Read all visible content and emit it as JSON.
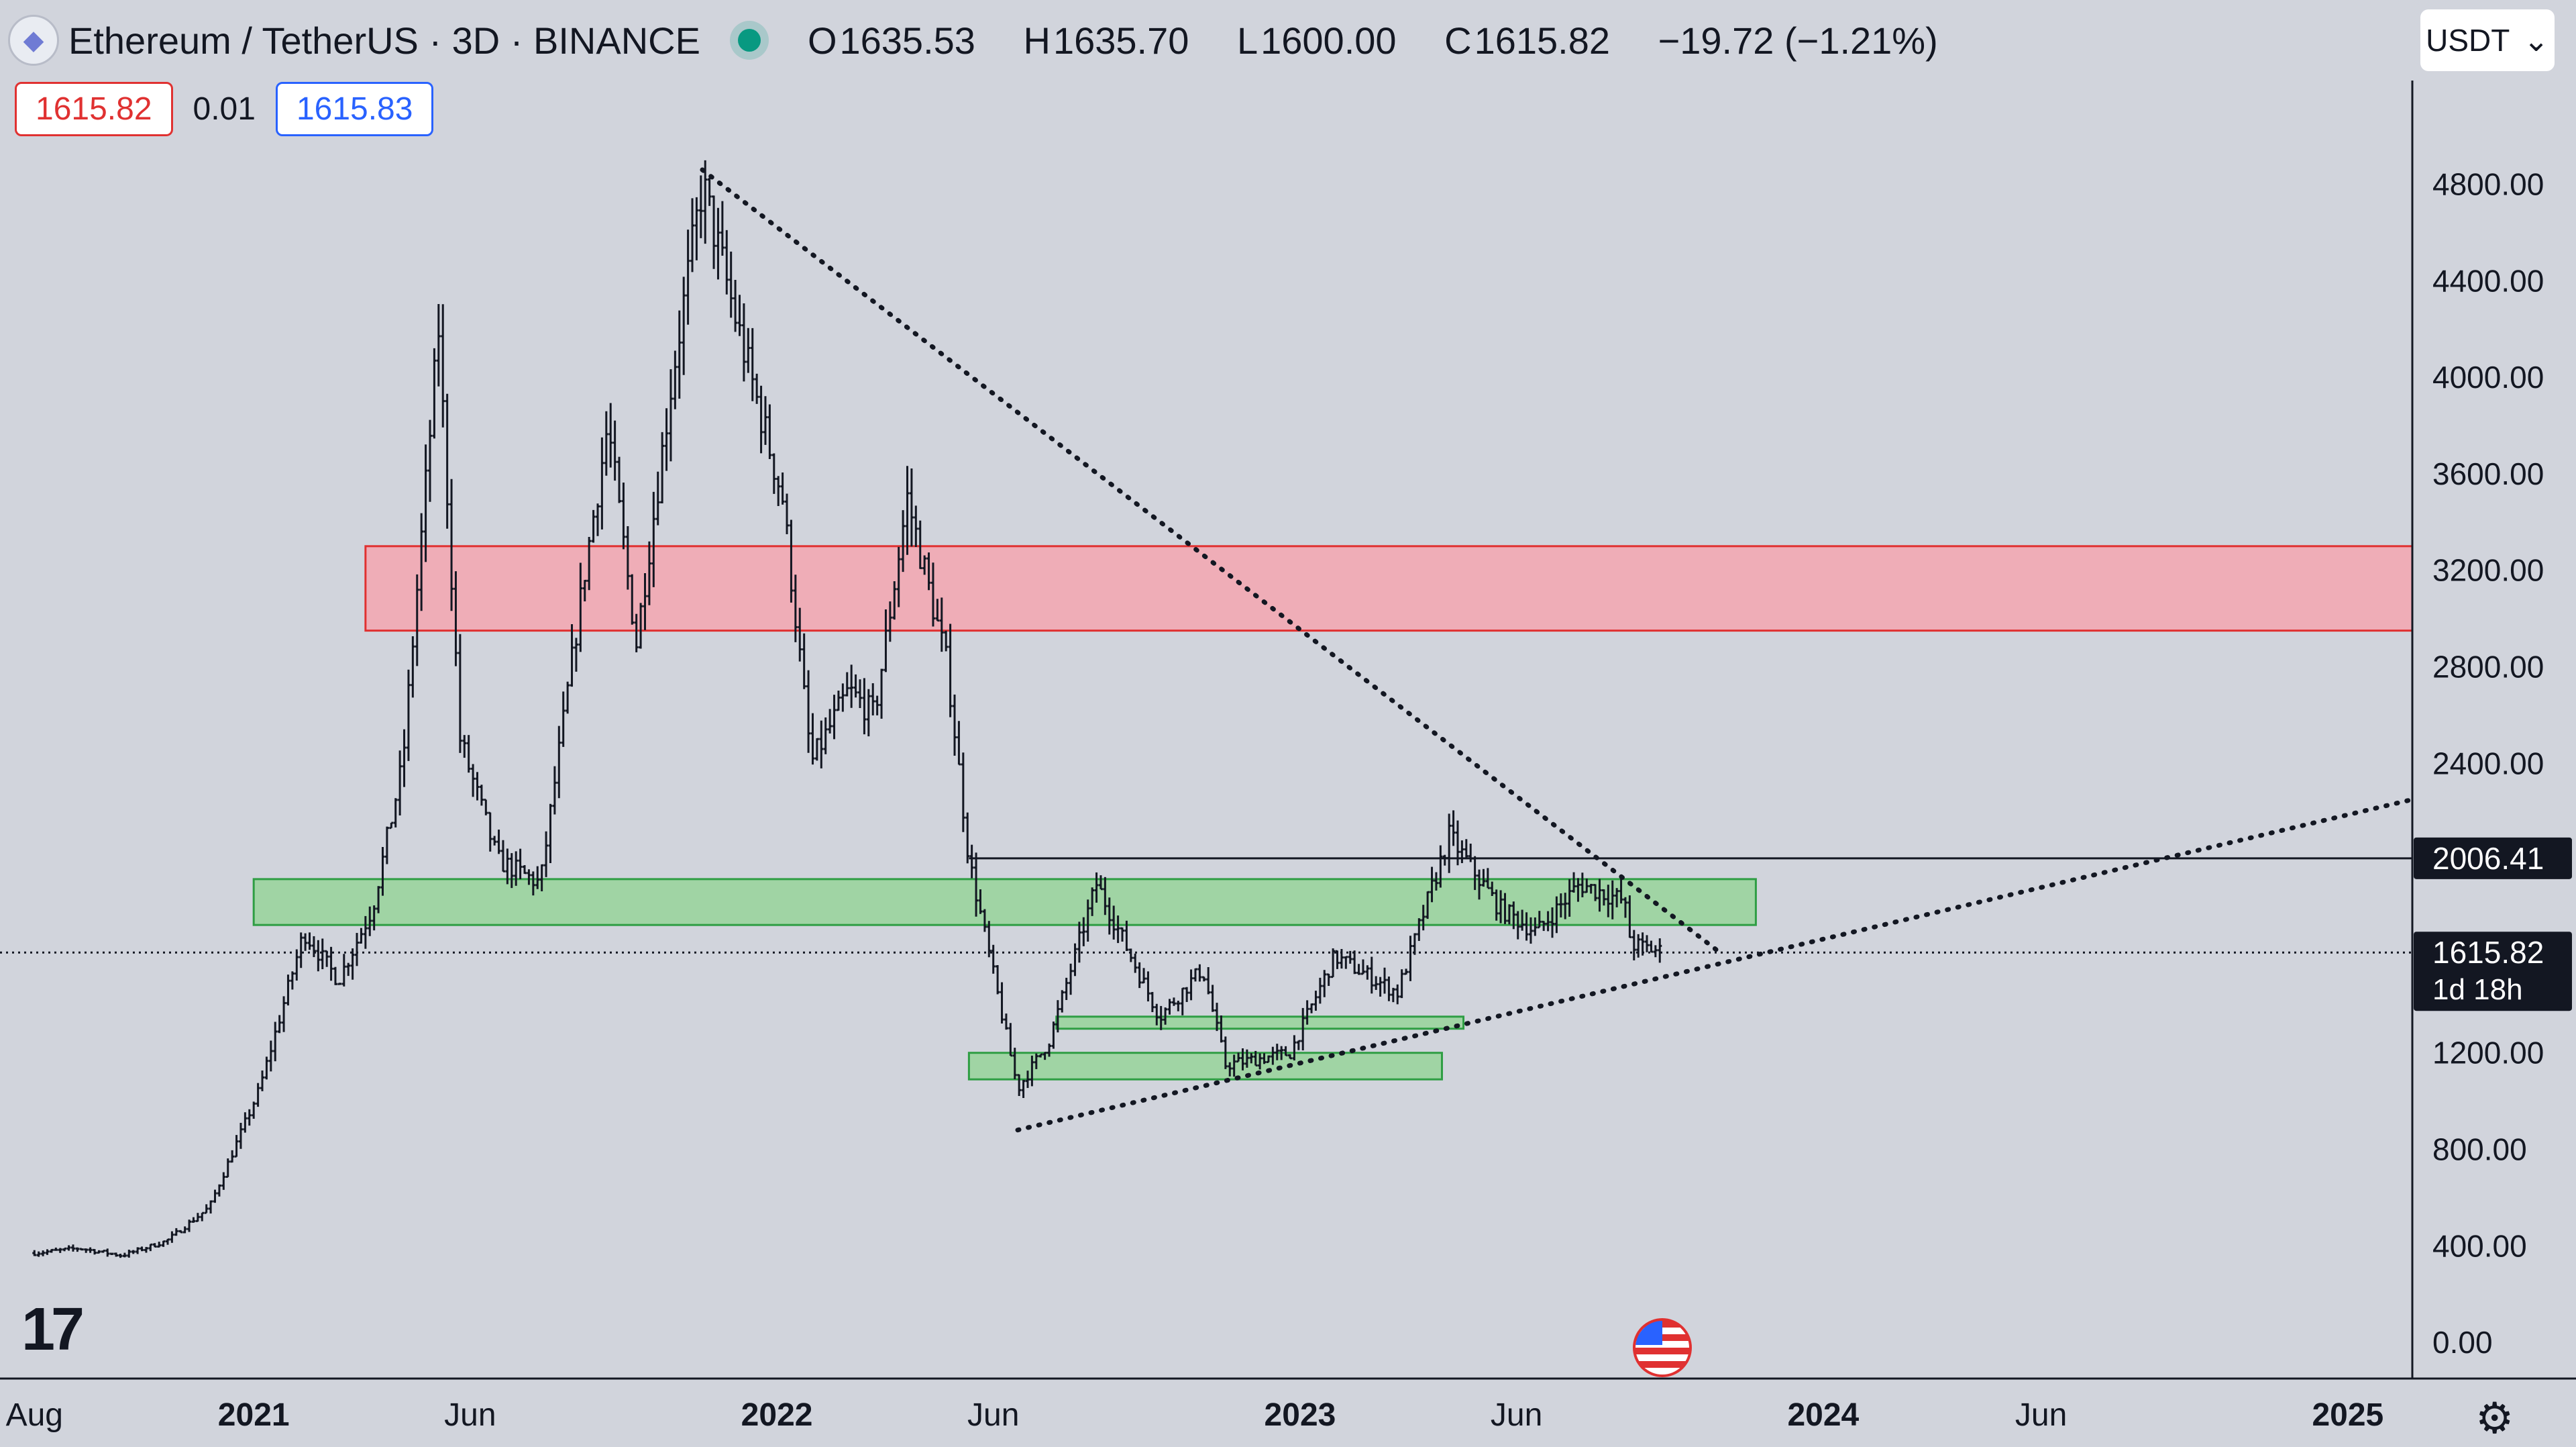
{
  "header": {
    "symbol": "Ethereum / TetherUS · 3D · BINANCE",
    "open_label": "O",
    "open": "1635.53",
    "high_label": "H",
    "high": "1635.70",
    "low_label": "L",
    "low": "1600.00",
    "close_label": "C",
    "close": "1615.82",
    "change": "−19.72 (−1.21%)"
  },
  "trade": {
    "sell_price": "1615.82",
    "spread": "0.01",
    "buy_price": "1615.83"
  },
  "currency_select": {
    "value": "USDT"
  },
  "icons": {
    "logo": "ethereum-icon",
    "live": "live-dot-icon",
    "brand": "tradingview-logo",
    "flag": "us-flag-icon",
    "settings": "gear-icon",
    "chevron": "chevron-down-icon"
  },
  "colors": {
    "background": "#d1d4dc",
    "candle": "#131722",
    "resistance_zone": "#f4a6b0",
    "support_zone": "#98d49a"
  },
  "chart_data": {
    "type": "candlestick",
    "title": "Ethereum / TetherUS · 3D · BINANCE",
    "x_ticks": [
      "Aug",
      "2021",
      "Jun",
      "2022",
      "Jun",
      "2023",
      "Jun",
      "2024",
      "Jun",
      "2025"
    ],
    "x_tick_dates": [
      "2020-08-01",
      "2021-01-01",
      "2021-06-01",
      "2022-01-01",
      "2022-06-01",
      "2023-01-01",
      "2023-06-01",
      "2024-01-01",
      "2024-06-01",
      "2025-01-01"
    ],
    "y_ticks": [
      "0.00",
      "400.00",
      "800.00",
      "1200.00",
      "2400.00",
      "2800.00",
      "3200.00",
      "3600.00",
      "4000.00",
      "4400.00",
      "4800.00"
    ],
    "ylim": [
      -150,
      5230
    ],
    "xlim": [
      "2020-07-08",
      "2025-02-15"
    ],
    "price_series": [
      {
        "date": "2020-08-01",
        "price": 370
      },
      {
        "date": "2020-09-01",
        "price": 390
      },
      {
        "date": "2020-10-01",
        "price": 360
      },
      {
        "date": "2020-11-01",
        "price": 420
      },
      {
        "date": "2020-12-01",
        "price": 560
      },
      {
        "date": "2021-01-05",
        "price": 1050
      },
      {
        "date": "2021-02-05",
        "price": 1700
      },
      {
        "date": "2021-03-01",
        "price": 1500
      },
      {
        "date": "2021-03-25",
        "price": 1800
      },
      {
        "date": "2021-04-15",
        "price": 2400
      },
      {
        "date": "2021-05-10",
        "price": 4200
      },
      {
        "date": "2021-05-25",
        "price": 2500
      },
      {
        "date": "2021-06-20",
        "price": 2000
      },
      {
        "date": "2021-07-20",
        "price": 1900
      },
      {
        "date": "2021-08-20",
        "price": 3200
      },
      {
        "date": "2021-09-05",
        "price": 3800
      },
      {
        "date": "2021-09-25",
        "price": 2900
      },
      {
        "date": "2021-10-20",
        "price": 4000
      },
      {
        "date": "2021-11-10",
        "price": 4800
      },
      {
        "date": "2021-12-05",
        "price": 4200
      },
      {
        "date": "2022-01-05",
        "price": 3500
      },
      {
        "date": "2022-01-25",
        "price": 2400
      },
      {
        "date": "2022-02-20",
        "price": 2700
      },
      {
        "date": "2022-03-10",
        "price": 2600
      },
      {
        "date": "2022-04-02",
        "price": 3500
      },
      {
        "date": "2022-04-30",
        "price": 2800
      },
      {
        "date": "2022-05-15",
        "price": 2000
      },
      {
        "date": "2022-06-18",
        "price": 1050
      },
      {
        "date": "2022-07-10",
        "price": 1250
      },
      {
        "date": "2022-08-12",
        "price": 1900
      },
      {
        "date": "2022-09-25",
        "price": 1350
      },
      {
        "date": "2022-10-25",
        "price": 1550
      },
      {
        "date": "2022-11-10",
        "price": 1150
      },
      {
        "date": "2022-12-25",
        "price": 1200
      },
      {
        "date": "2023-01-25",
        "price": 1600
      },
      {
        "date": "2023-03-10",
        "price": 1450
      },
      {
        "date": "2023-04-15",
        "price": 2100
      },
      {
        "date": "2023-05-20",
        "price": 1800
      },
      {
        "date": "2023-06-15",
        "price": 1700
      },
      {
        "date": "2023-07-15",
        "price": 1900
      },
      {
        "date": "2023-08-15",
        "price": 1830
      },
      {
        "date": "2023-08-20",
        "price": 1650
      },
      {
        "date": "2023-09-10",
        "price": 1620
      }
    ],
    "zones": [
      {
        "name": "resistance",
        "from": "2021-03-20",
        "to": "2025-02-15",
        "low": 2950,
        "high": 3300,
        "color": "#f4a6b0"
      },
      {
        "name": "support",
        "from": "2021-01-01",
        "to": "2023-11-15",
        "low": 1730,
        "high": 1920,
        "color": "#98d49a"
      },
      {
        "name": "support-small",
        "from": "2022-07-15",
        "to": "2023-04-25",
        "low": 1300,
        "high": 1350,
        "color": "#98d49a"
      },
      {
        "name": "support-low",
        "from": "2022-05-15",
        "to": "2023-04-10",
        "low": 1090,
        "high": 1200,
        "color": "#98d49a"
      }
    ],
    "trendlines": [
      {
        "name": "descending",
        "from": {
          "date": "2021-11-10",
          "price": 4860
        },
        "to": {
          "date": "2023-10-20",
          "price": 1620
        },
        "style": "dotted"
      },
      {
        "name": "ascending",
        "from": {
          "date": "2022-06-18",
          "price": 880
        },
        "to": {
          "date": "2025-02-15",
          "price": 2250
        },
        "style": "dotted"
      }
    ],
    "levels": [
      {
        "name": "horizontal",
        "price": 2006.41,
        "label": "2006.41",
        "from": "2022-05-15",
        "style": "solid"
      },
      {
        "name": "last-price",
        "price": 1615.82,
        "label": "1615.82",
        "sublabel": "1d 18h",
        "style": "dotted"
      }
    ]
  }
}
